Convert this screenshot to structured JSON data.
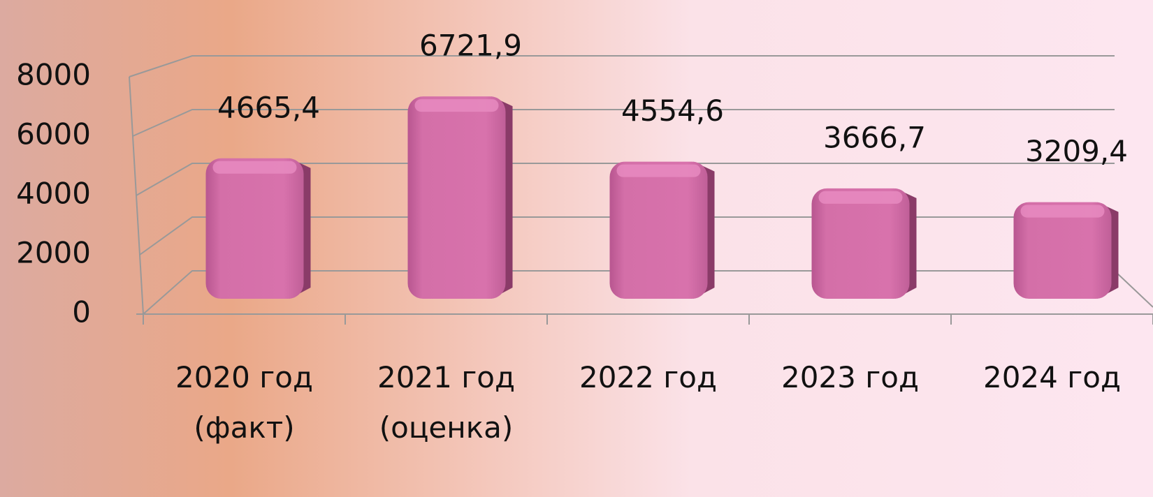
{
  "chart_data": {
    "type": "bar",
    "categories": [
      "2020 год (факт)",
      "2021 год (оценка)",
      "2022 год",
      "2023 год",
      "2024 год"
    ],
    "values": [
      4665.4,
      6721.9,
      4554.6,
      3666.7,
      3209.4
    ],
    "value_labels": [
      "4665,4",
      "6721,9",
      "4554,6",
      "3666,7",
      "3209,4"
    ],
    "color": "#d46fa8",
    "ylim": [
      0,
      8000
    ],
    "yticks": [
      0,
      2000,
      4000,
      6000,
      8000
    ],
    "grid": true
  }
}
